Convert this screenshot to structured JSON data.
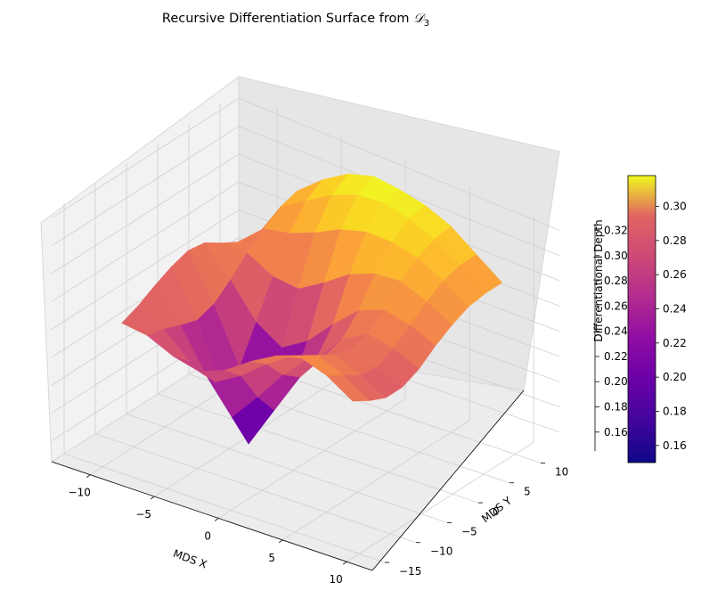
{
  "chart_data": {
    "type": "surface3d",
    "title_text": "Recursive Differentiation Surface from ",
    "title_math": "𝒟",
    "title_sub": "3",
    "xlabel": "MDS X",
    "ylabel": "MDS Y",
    "zlabel": "Differentiational Depth",
    "x_ticks": [
      "−10",
      "−5",
      "0",
      "5",
      "10"
    ],
    "y_ticks": [
      "−15",
      "−10",
      "−5",
      "0",
      "5",
      "10"
    ],
    "z_ticks": [
      "0.16",
      "0.18",
      "0.20",
      "0.22",
      "0.24",
      "0.26",
      "0.28",
      "0.30",
      "0.32"
    ],
    "colorbar_ticks": [
      "0.16",
      "0.18",
      "0.20",
      "0.22",
      "0.24",
      "0.26",
      "0.28",
      "0.30"
    ],
    "colormap": "plasma",
    "vmin": 0.15,
    "vmax": 0.318,
    "xlim": [
      -13,
      12
    ],
    "ylim": [
      -17,
      13
    ],
    "zlim": [
      0.145,
      0.325
    ],
    "grid": true,
    "surface_z_grid": [
      [
        0.25,
        0.255,
        0.262,
        0.268,
        0.272,
        0.27,
        0.262,
        0.255,
        0.25,
        0.246
      ],
      [
        0.248,
        0.245,
        0.24,
        0.236,
        0.24,
        0.25,
        0.262,
        0.272,
        0.28,
        0.284
      ],
      [
        0.24,
        0.228,
        0.21,
        0.19,
        0.2,
        0.226,
        0.252,
        0.276,
        0.292,
        0.3
      ],
      [
        0.236,
        0.22,
        0.186,
        0.158,
        0.176,
        0.214,
        0.25,
        0.284,
        0.304,
        0.312
      ],
      [
        0.244,
        0.232,
        0.208,
        0.19,
        0.2,
        0.226,
        0.262,
        0.294,
        0.312,
        0.318
      ],
      [
        0.258,
        0.248,
        0.232,
        0.222,
        0.228,
        0.246,
        0.276,
        0.3,
        0.314,
        0.316
      ],
      [
        0.27,
        0.262,
        0.252,
        0.246,
        0.25,
        0.264,
        0.284,
        0.3,
        0.31,
        0.312
      ],
      [
        0.276,
        0.27,
        0.262,
        0.258,
        0.262,
        0.272,
        0.286,
        0.296,
        0.302,
        0.304
      ],
      [
        0.27,
        0.262,
        0.254,
        0.252,
        0.258,
        0.268,
        0.278,
        0.286,
        0.29,
        0.29
      ],
      [
        0.258,
        0.25,
        0.244,
        0.244,
        0.25,
        0.26,
        0.268,
        0.274,
        0.276,
        0.276
      ]
    ]
  }
}
